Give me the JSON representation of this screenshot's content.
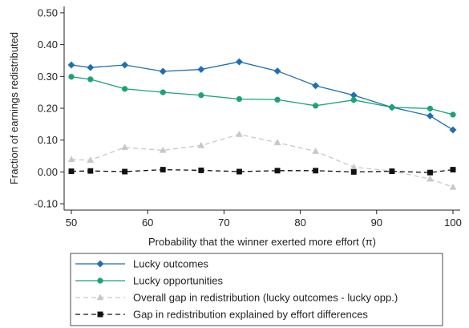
{
  "chart_data": {
    "type": "line",
    "xlabel": "Probability that the winner exerted more effort (π)",
    "ylabel": "Fraction of earnings redistributed",
    "xlim": [
      50,
      100
    ],
    "ylim": [
      -0.12,
      0.52
    ],
    "xticks": [
      50,
      60,
      70,
      80,
      90,
      100
    ],
    "xtick_labels": [
      "50",
      "60",
      "70",
      "80",
      "90",
      "100"
    ],
    "yticks": [
      -0.1,
      0.0,
      0.1,
      0.2,
      0.3,
      0.4,
      0.5
    ],
    "ytick_labels": [
      "-0.10",
      "0.00",
      "0.10",
      "0.20",
      "0.30",
      "0.40",
      "0.50"
    ],
    "grid": false,
    "legend_position": "bottom",
    "x": [
      50,
      52.5,
      57,
      62,
      67,
      72,
      77,
      82,
      87,
      92,
      97,
      100
    ],
    "series": [
      {
        "name": "Lucky outcomes",
        "color": "#1f6fb0",
        "marker": "diamond",
        "dash": "solid",
        "values": [
          0.336,
          0.328,
          0.336,
          0.316,
          0.322,
          0.346,
          0.317,
          0.271,
          0.241,
          0.203,
          0.176,
          0.132
        ]
      },
      {
        "name": "Lucky opportunities",
        "color": "#1aa37a",
        "marker": "circle",
        "dash": "solid",
        "values": [
          0.299,
          0.291,
          0.261,
          0.25,
          0.241,
          0.229,
          0.227,
          0.208,
          0.226,
          0.203,
          0.199,
          0.18
        ]
      },
      {
        "name": "Overall gap in redistribution (lucky outcomes - lucky opp.)",
        "color": "#c8c8c8",
        "marker": "triangle",
        "dash": "dashed",
        "values": [
          0.039,
          0.037,
          0.077,
          0.068,
          0.083,
          0.118,
          0.092,
          0.065,
          0.015,
          0.003,
          -0.022,
          -0.048
        ]
      },
      {
        "name": "Gap in redistribution explained by effort differences",
        "color": "#111111",
        "marker": "square",
        "dash": "dashed",
        "values": [
          0.002,
          0.003,
          0.001,
          0.007,
          0.005,
          0.001,
          0.004,
          0.004,
          0.0,
          0.002,
          -0.002,
          0.007
        ]
      }
    ]
  }
}
